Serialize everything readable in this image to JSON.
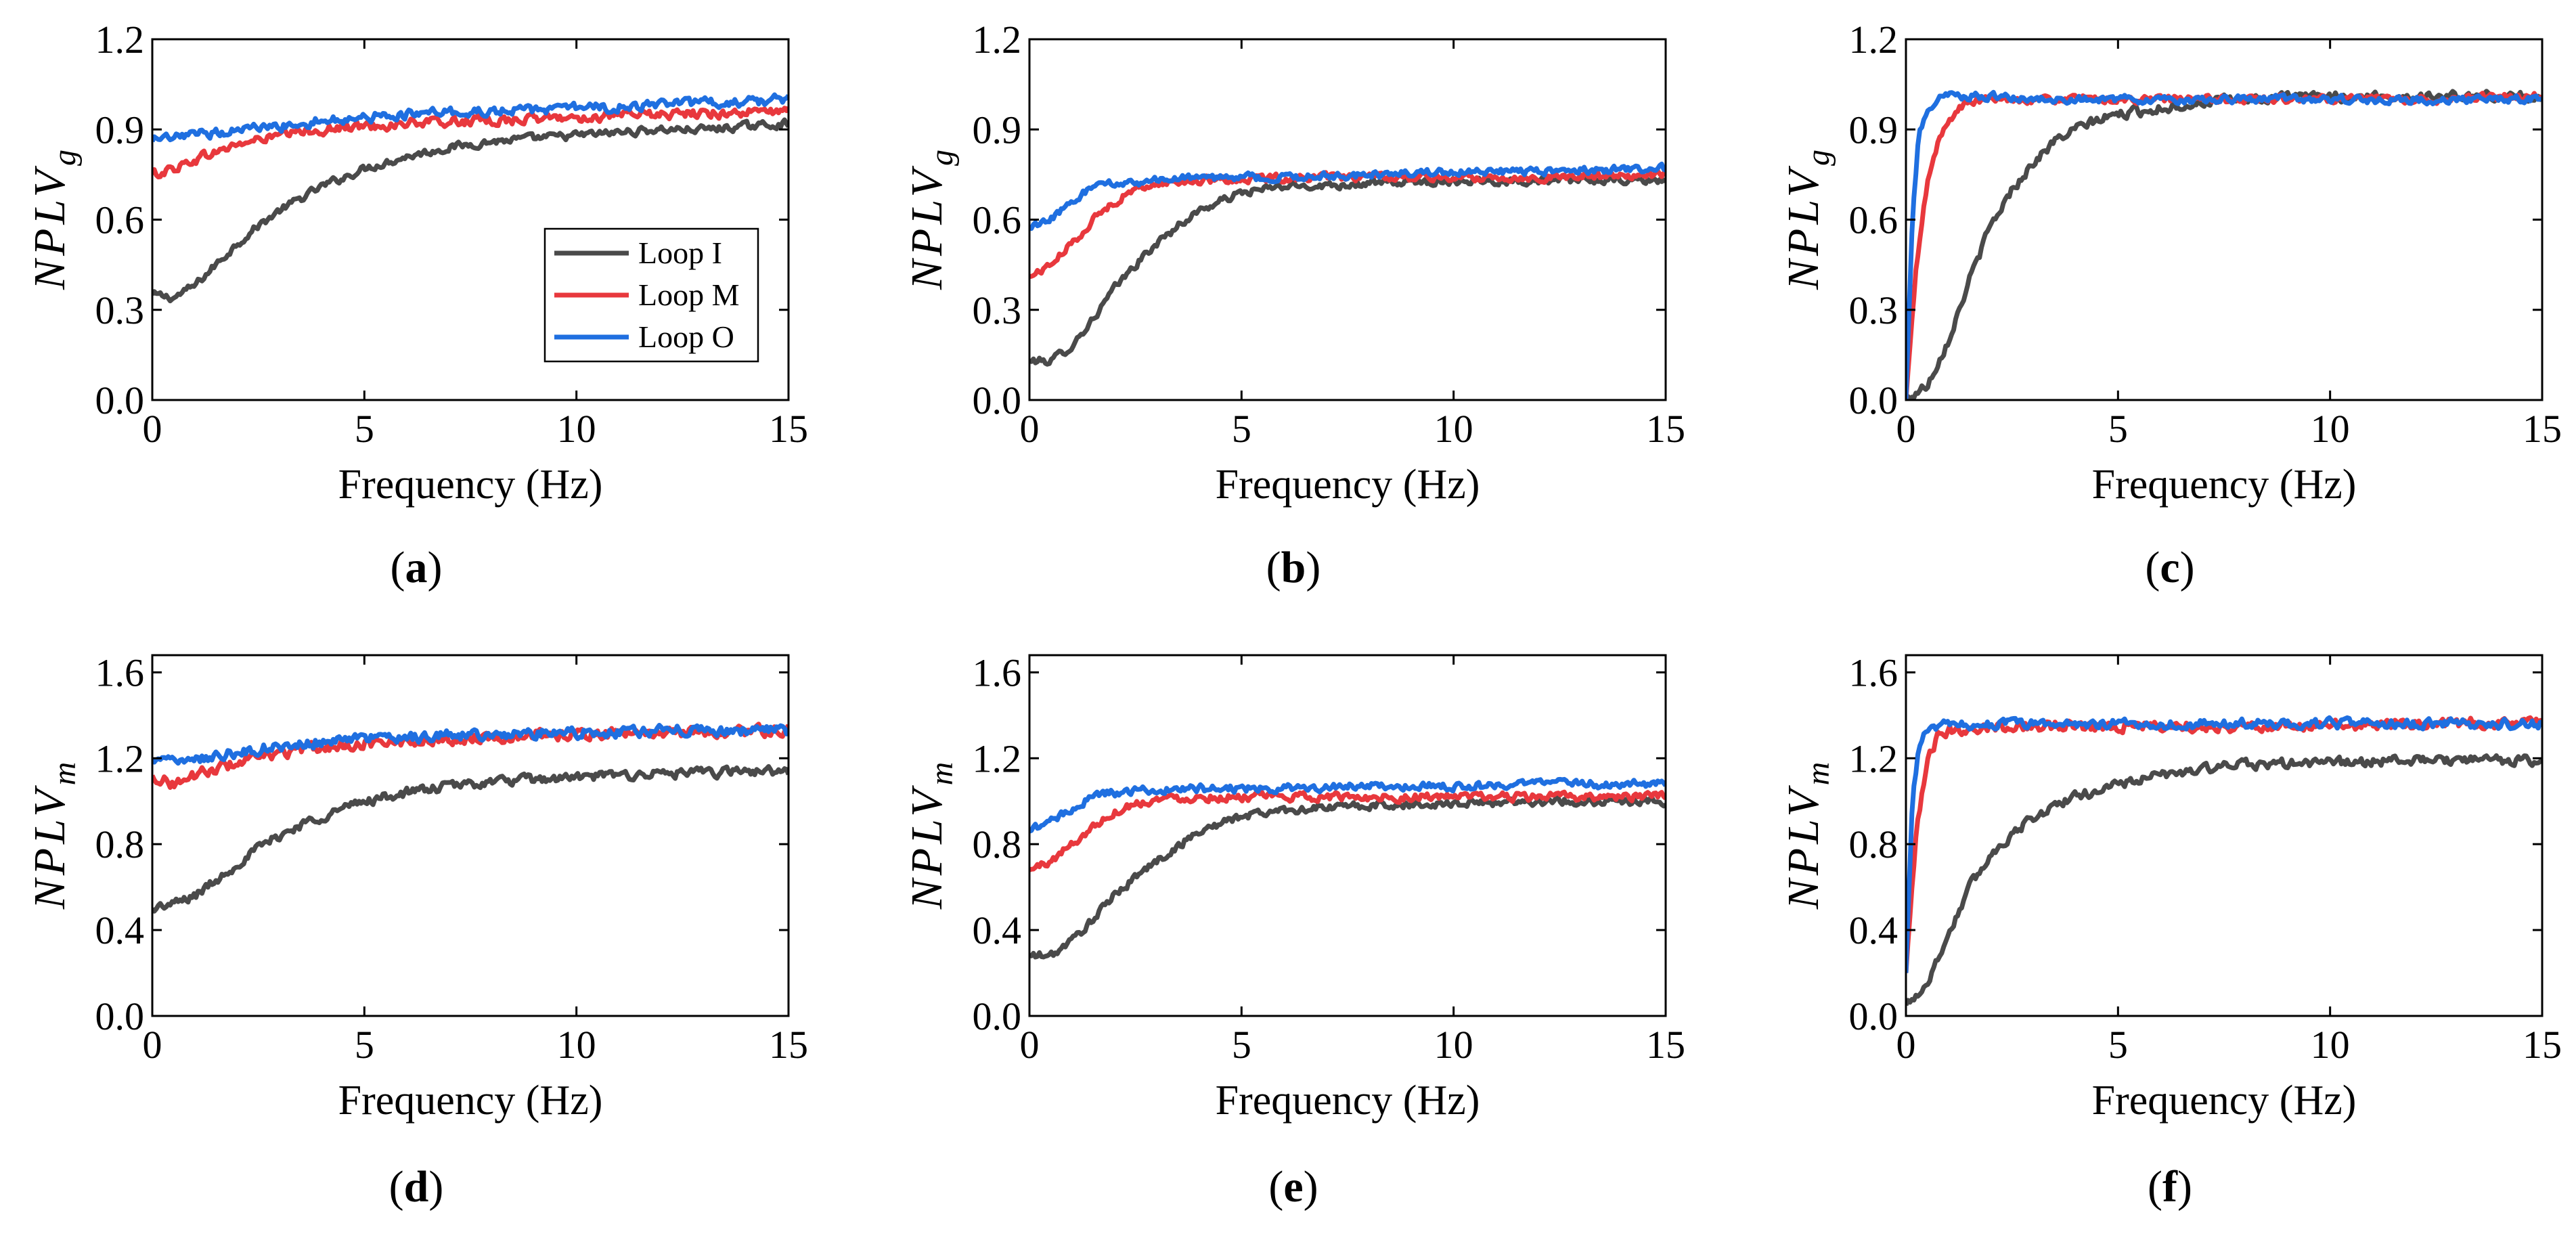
{
  "colors": {
    "loop_i": "#4a4a4a",
    "loop_m": "#e8383d",
    "loop_o": "#1f6fe0"
  },
  "legend": [
    "Loop I",
    "Loop M",
    "Loop O"
  ],
  "chart_data": [
    {
      "panel": "(a)",
      "label_letter": "a",
      "type": "line",
      "xlabel": "Frequency (Hz)",
      "ylabel_base": "NPLV",
      "ylabel_sub": "g",
      "xlim": [
        0,
        15
      ],
      "ylim": [
        0,
        1.2
      ],
      "xticks": [
        0,
        5,
        10,
        15
      ],
      "yticks": [
        "0.0",
        "0.3",
        "0.6",
        "0.9",
        "1.2"
      ],
      "legend_location": "center-right",
      "series": [
        {
          "name": "Loop I",
          "color_key": "loop_i",
          "x": [
            0,
            0.5,
            1,
            1.5,
            2,
            2.5,
            3,
            3.5,
            4,
            5,
            6,
            7,
            8,
            9,
            10,
            11,
            12,
            13,
            14,
            15
          ],
          "values": [
            0.35,
            0.34,
            0.38,
            0.45,
            0.52,
            0.58,
            0.63,
            0.67,
            0.71,
            0.77,
            0.81,
            0.84,
            0.86,
            0.87,
            0.88,
            0.89,
            0.9,
            0.9,
            0.91,
            0.92
          ],
          "noise": 0.02
        },
        {
          "name": "Loop M",
          "color_key": "loop_m",
          "x": [
            0,
            0.5,
            1,
            2,
            3,
            4,
            5,
            6,
            8,
            10,
            12,
            15
          ],
          "values": [
            0.75,
            0.77,
            0.8,
            0.85,
            0.88,
            0.9,
            0.91,
            0.92,
            0.93,
            0.94,
            0.95,
            0.96
          ],
          "noise": 0.025
        },
        {
          "name": "Loop O",
          "color_key": "loop_o",
          "x": [
            0,
            0.5,
            1,
            2,
            3,
            4,
            5,
            6,
            8,
            10,
            12,
            15
          ],
          "values": [
            0.86,
            0.87,
            0.88,
            0.9,
            0.91,
            0.93,
            0.94,
            0.95,
            0.96,
            0.97,
            0.98,
            1.0
          ],
          "noise": 0.025
        }
      ]
    },
    {
      "panel": "(b)",
      "label_letter": "b",
      "type": "line",
      "xlabel": "Frequency (Hz)",
      "ylabel_base": "NPLV",
      "ylabel_sub": "g",
      "xlim": [
        0,
        15
      ],
      "ylim": [
        0,
        1.2
      ],
      "xticks": [
        0,
        5,
        10,
        15
      ],
      "yticks": [
        "0.0",
        "0.3",
        "0.6",
        "0.9",
        "1.2"
      ],
      "series": [
        {
          "name": "Loop I",
          "color_key": "loop_i",
          "x": [
            0,
            0.5,
            1,
            1.5,
            2,
            2.5,
            3,
            3.5,
            4,
            5,
            6,
            8,
            10,
            12,
            15
          ],
          "values": [
            0.13,
            0.13,
            0.18,
            0.27,
            0.37,
            0.45,
            0.52,
            0.58,
            0.63,
            0.69,
            0.71,
            0.72,
            0.73,
            0.73,
            0.73
          ],
          "noise": 0.02
        },
        {
          "name": "Loop M",
          "color_key": "loop_m",
          "x": [
            0,
            0.5,
            1,
            1.5,
            2,
            2.5,
            3,
            4,
            6,
            8,
            10,
            12,
            15
          ],
          "values": [
            0.41,
            0.45,
            0.52,
            0.6,
            0.66,
            0.7,
            0.72,
            0.73,
            0.74,
            0.74,
            0.74,
            0.74,
            0.75
          ],
          "noise": 0.02
        },
        {
          "name": "Loop O",
          "color_key": "loop_o",
          "x": [
            0,
            0.5,
            1,
            1.5,
            2,
            3,
            4,
            6,
            8,
            10,
            12,
            15
          ],
          "values": [
            0.57,
            0.6,
            0.66,
            0.71,
            0.72,
            0.73,
            0.74,
            0.74,
            0.75,
            0.76,
            0.76,
            0.77
          ],
          "noise": 0.02
        }
      ]
    },
    {
      "panel": "(c)",
      "label_letter": "c",
      "type": "line",
      "xlabel": "Frequency (Hz)",
      "ylabel_base": "NPLV",
      "ylabel_sub": "g",
      "xlim": [
        0,
        15
      ],
      "ylim": [
        0,
        1.2
      ],
      "xticks": [
        0,
        5,
        10,
        15
      ],
      "yticks": [
        "0.0",
        "0.3",
        "0.6",
        "0.9",
        "1.2"
      ],
      "series": [
        {
          "name": "Loop I",
          "color_key": "loop_i",
          "x": [
            0,
            0.5,
            1,
            1.5,
            2,
            2.5,
            3,
            3.5,
            4,
            4.5,
            5,
            6,
            7,
            8,
            10,
            12,
            14,
            15
          ],
          "values": [
            0.0,
            0.05,
            0.2,
            0.4,
            0.58,
            0.7,
            0.79,
            0.86,
            0.9,
            0.93,
            0.95,
            0.97,
            0.99,
            1.0,
            1.01,
            1.01,
            1.01,
            1.01
          ],
          "noise": 0.025
        },
        {
          "name": "Loop M",
          "color_key": "loop_m",
          "x": [
            0,
            0.25,
            0.5,
            0.75,
            1,
            1.25,
            1.5,
            2,
            3,
            5,
            8,
            10,
            12,
            15
          ],
          "values": [
            0.0,
            0.45,
            0.72,
            0.85,
            0.93,
            0.97,
            0.99,
            1.0,
            1.0,
            1.0,
            1.0,
            1.0,
            1.0,
            1.01
          ],
          "noise": 0.02
        },
        {
          "name": "Loop O",
          "color_key": "loop_o",
          "x": [
            0,
            0.15,
            0.3,
            0.5,
            0.75,
            1,
            1.5,
            2,
            3,
            5,
            8,
            10,
            12,
            15
          ],
          "values": [
            0.0,
            0.6,
            0.88,
            0.97,
            1.0,
            1.01,
            1.01,
            1.01,
            1.0,
            1.0,
            1.0,
            1.0,
            1.0,
            1.0
          ],
          "noise": 0.02
        }
      ]
    },
    {
      "panel": "(d)",
      "label_letter": "d",
      "type": "line",
      "xlabel": "Frequency (Hz)",
      "ylabel_base": "NPLV",
      "ylabel_sub": "m",
      "xlim": [
        0,
        15
      ],
      "ylim": [
        0,
        1.68
      ],
      "xticks": [
        0,
        5,
        10,
        15
      ],
      "yticks": [
        "0.0",
        "0.4",
        "0.8",
        "1.2",
        "1.6"
      ],
      "series": [
        {
          "name": "Loop I",
          "color_key": "loop_i",
          "x": [
            0,
            0.5,
            1,
            1.5,
            2,
            2.5,
            3,
            3.5,
            4,
            5,
            6,
            7,
            8,
            9,
            10,
            11,
            12,
            13,
            14,
            15
          ],
          "values": [
            0.5,
            0.52,
            0.56,
            0.63,
            0.71,
            0.78,
            0.84,
            0.89,
            0.93,
            1.0,
            1.04,
            1.07,
            1.09,
            1.1,
            1.11,
            1.12,
            1.13,
            1.13,
            1.14,
            1.14
          ],
          "noise": 0.035
        },
        {
          "name": "Loop M",
          "color_key": "loop_m",
          "x": [
            0,
            0.5,
            1,
            2,
            3,
            4,
            5,
            6,
            8,
            10,
            12,
            15
          ],
          "values": [
            1.12,
            1.08,
            1.12,
            1.18,
            1.22,
            1.25,
            1.27,
            1.28,
            1.3,
            1.31,
            1.32,
            1.33
          ],
          "noise": 0.04
        },
        {
          "name": "Loop O",
          "color_key": "loop_o",
          "x": [
            0,
            0.5,
            1,
            2,
            3,
            4,
            5,
            6,
            8,
            10,
            12,
            15
          ],
          "values": [
            1.2,
            1.18,
            1.2,
            1.23,
            1.26,
            1.28,
            1.29,
            1.3,
            1.31,
            1.32,
            1.33,
            1.33
          ],
          "noise": 0.04
        }
      ]
    },
    {
      "panel": "(e)",
      "label_letter": "e",
      "type": "line",
      "xlabel": "Frequency (Hz)",
      "ylabel_base": "NPLV",
      "ylabel_sub": "m",
      "xlim": [
        0,
        15
      ],
      "ylim": [
        0,
        1.68
      ],
      "xticks": [
        0,
        5,
        10,
        15
      ],
      "yticks": [
        "0.0",
        "0.4",
        "0.8",
        "1.2",
        "1.6"
      ],
      "series": [
        {
          "name": "Loop I",
          "color_key": "loop_i",
          "x": [
            0,
            0.5,
            1,
            1.5,
            2,
            2.5,
            3,
            3.5,
            4,
            5,
            6,
            8,
            10,
            12,
            15
          ],
          "values": [
            0.28,
            0.28,
            0.35,
            0.45,
            0.56,
            0.65,
            0.72,
            0.79,
            0.86,
            0.93,
            0.96,
            0.98,
            0.99,
            1.0,
            1.0
          ],
          "noise": 0.03
        },
        {
          "name": "Loop M",
          "color_key": "loop_m",
          "x": [
            0,
            0.5,
            1,
            1.5,
            2,
            2.5,
            3,
            4,
            6,
            8,
            10,
            12,
            15
          ],
          "values": [
            0.68,
            0.72,
            0.8,
            0.88,
            0.95,
            0.99,
            1.01,
            1.02,
            1.02,
            1.02,
            1.02,
            1.02,
            1.02
          ],
          "noise": 0.03
        },
        {
          "name": "Loop O",
          "color_key": "loop_o",
          "x": [
            0,
            0.5,
            1,
            1.5,
            2,
            3,
            4,
            6,
            8,
            10,
            12,
            15
          ],
          "values": [
            0.86,
            0.9,
            0.97,
            1.02,
            1.04,
            1.05,
            1.06,
            1.06,
            1.07,
            1.07,
            1.08,
            1.08
          ],
          "noise": 0.03
        }
      ]
    },
    {
      "panel": "(f)",
      "label_letter": "f",
      "type": "line",
      "xlabel": "Frequency (Hz)",
      "ylabel_base": "NPLV",
      "ylabel_sub": "m",
      "xlim": [
        0,
        15
      ],
      "ylim": [
        0,
        1.68
      ],
      "xticks": [
        0,
        5,
        10,
        15
      ],
      "yticks": [
        "0.0",
        "0.4",
        "0.8",
        "1.2",
        "1.6"
      ],
      "series": [
        {
          "name": "Loop I",
          "color_key": "loop_i",
          "x": [
            0,
            0.5,
            1,
            1.5,
            2,
            2.5,
            3,
            3.5,
            4,
            5,
            6,
            7,
            8,
            10,
            12,
            14,
            15
          ],
          "values": [
            0.05,
            0.15,
            0.38,
            0.6,
            0.75,
            0.85,
            0.92,
            0.98,
            1.02,
            1.08,
            1.12,
            1.15,
            1.17,
            1.18,
            1.19,
            1.19,
            1.19
          ],
          "noise": 0.035
        },
        {
          "name": "Loop M",
          "color_key": "loop_m",
          "x": [
            0,
            0.25,
            0.5,
            0.75,
            1,
            1.5,
            2,
            3,
            5,
            8,
            10,
            12,
            15
          ],
          "values": [
            0.2,
            0.85,
            1.18,
            1.3,
            1.33,
            1.34,
            1.35,
            1.35,
            1.35,
            1.35,
            1.35,
            1.36,
            1.37
          ],
          "noise": 0.04
        },
        {
          "name": "Loop O",
          "color_key": "loop_o",
          "x": [
            0,
            0.15,
            0.3,
            0.5,
            0.75,
            1,
            2,
            3,
            5,
            8,
            10,
            12,
            15
          ],
          "values": [
            0.2,
            1.0,
            1.25,
            1.33,
            1.35,
            1.35,
            1.36,
            1.36,
            1.36,
            1.36,
            1.36,
            1.36,
            1.36
          ],
          "noise": 0.035
        }
      ]
    }
  ]
}
